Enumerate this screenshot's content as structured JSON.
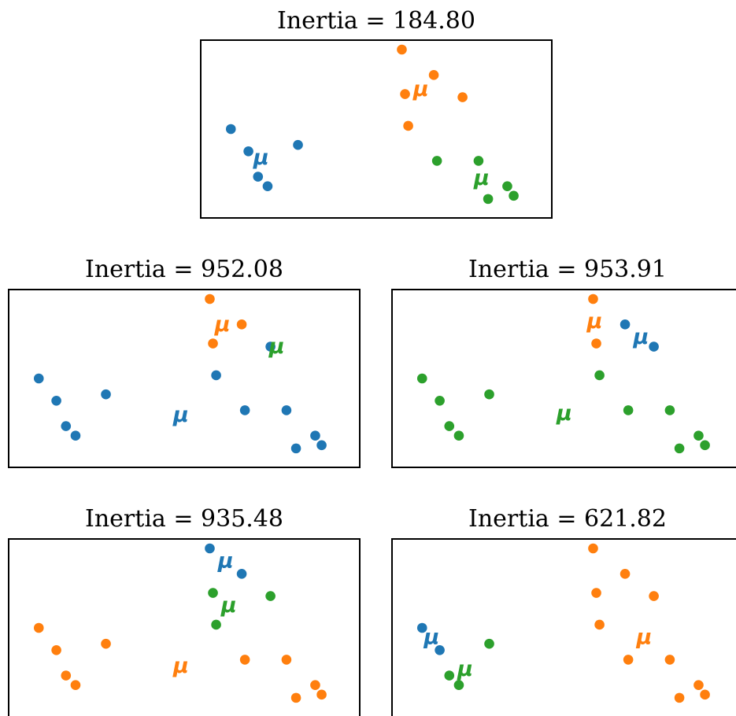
{
  "colors": {
    "c0": "#1f77b4",
    "c1": "#ff7f0e",
    "c2": "#2ca02c",
    "frame": "#000000"
  },
  "centroid_marker": "μ",
  "chart_data": [
    {
      "type": "scatter",
      "title": "Inertia = 184.80",
      "xlim": [
        0,
        10
      ],
      "ylim": [
        0,
        5
      ],
      "points": {
        "x": [
          0.45,
          1.0,
          1.3,
          1.6,
          2.55,
          5.8,
          5.9,
          6.0,
          6.8,
          7.7,
          6.9,
          8.2,
          8.5,
          9.1,
          9.3
        ],
        "y": [
          2.5,
          1.8,
          1.0,
          0.7,
          2.0,
          5.0,
          3.6,
          2.6,
          4.2,
          3.5,
          1.5,
          1.5,
          0.3,
          0.7,
          0.4
        ],
        "cluster": [
          0,
          0,
          0,
          0,
          0,
          1,
          1,
          1,
          1,
          1,
          2,
          2,
          2,
          2,
          2
        ]
      },
      "centroids": [
        {
          "cluster": 0,
          "x": 1.4,
          "y": 1.6
        },
        {
          "cluster": 1,
          "x": 6.4,
          "y": 3.75
        },
        {
          "cluster": 2,
          "x": 8.3,
          "y": 0.95
        }
      ]
    },
    {
      "type": "scatter",
      "title": "Inertia = 952.08",
      "xlim": [
        0,
        10
      ],
      "ylim": [
        0,
        5
      ],
      "points": {
        "x": [
          0.45,
          1.0,
          1.3,
          1.6,
          2.55,
          5.8,
          5.9,
          6.0,
          6.8,
          7.7,
          6.9,
          8.2,
          8.5,
          9.1,
          9.3
        ],
        "y": [
          2.5,
          1.8,
          1.0,
          0.7,
          2.0,
          5.0,
          3.6,
          2.6,
          4.2,
          3.5,
          1.5,
          1.5,
          0.3,
          0.7,
          0.4
        ],
        "cluster": [
          0,
          0,
          0,
          0,
          0,
          1,
          1,
          0,
          1,
          0,
          0,
          0,
          0,
          0,
          0
        ]
      },
      "centroids": [
        {
          "cluster": 0,
          "x": 4.9,
          "y": 1.35
        },
        {
          "cluster": 1,
          "x": 6.2,
          "y": 4.2
        },
        {
          "cluster": 2,
          "x": 7.9,
          "y": 3.5
        }
      ]
    },
    {
      "type": "scatter",
      "title": "Inertia = 953.91",
      "xlim": [
        0,
        10
      ],
      "ylim": [
        0,
        5
      ],
      "points": {
        "x": [
          0.45,
          1.0,
          1.3,
          1.6,
          2.55,
          5.8,
          5.9,
          6.0,
          6.8,
          7.7,
          6.9,
          8.2,
          8.5,
          9.1,
          9.3
        ],
        "y": [
          2.5,
          1.8,
          1.0,
          0.7,
          2.0,
          5.0,
          3.6,
          2.6,
          4.2,
          3.5,
          1.5,
          1.5,
          0.3,
          0.7,
          0.4
        ],
        "cluster": [
          2,
          2,
          2,
          2,
          2,
          1,
          1,
          2,
          0,
          0,
          2,
          2,
          2,
          2,
          2
        ]
      },
      "centroids": [
        {
          "cluster": 0,
          "x": 7.3,
          "y": 3.8
        },
        {
          "cluster": 1,
          "x": 5.85,
          "y": 4.3
        },
        {
          "cluster": 2,
          "x": 4.9,
          "y": 1.4
        }
      ]
    },
    {
      "type": "scatter",
      "title": "Inertia = 935.48",
      "xlim": [
        0,
        10
      ],
      "ylim": [
        0,
        5
      ],
      "points": {
        "x": [
          0.45,
          1.0,
          1.3,
          1.6,
          2.55,
          5.8,
          5.9,
          6.0,
          6.8,
          7.7,
          6.9,
          8.2,
          8.5,
          9.1,
          9.3
        ],
        "y": [
          2.5,
          1.8,
          1.0,
          0.7,
          2.0,
          5.0,
          3.6,
          2.6,
          4.2,
          3.5,
          1.5,
          1.5,
          0.3,
          0.7,
          0.4
        ],
        "cluster": [
          1,
          1,
          1,
          1,
          1,
          0,
          2,
          2,
          0,
          2,
          1,
          1,
          1,
          1,
          1
        ]
      },
      "centroids": [
        {
          "cluster": 0,
          "x": 6.3,
          "y": 4.6
        },
        {
          "cluster": 1,
          "x": 4.9,
          "y": 1.3
        },
        {
          "cluster": 2,
          "x": 6.4,
          "y": 3.2
        }
      ]
    },
    {
      "type": "scatter",
      "title": "Inertia = 621.82",
      "xlim": [
        0,
        10
      ],
      "ylim": [
        0,
        5
      ],
      "points": {
        "x": [
          0.45,
          1.0,
          1.3,
          1.6,
          2.55,
          5.8,
          5.9,
          6.0,
          6.8,
          7.7,
          6.9,
          8.2,
          8.5,
          9.1,
          9.3
        ],
        "y": [
          2.5,
          1.8,
          1.0,
          0.7,
          2.0,
          5.0,
          3.6,
          2.6,
          4.2,
          3.5,
          1.5,
          1.5,
          0.3,
          0.7,
          0.4
        ],
        "cluster": [
          0,
          0,
          2,
          2,
          2,
          1,
          1,
          1,
          1,
          1,
          1,
          1,
          1,
          1,
          1
        ]
      },
      "centroids": [
        {
          "cluster": 0,
          "x": 0.75,
          "y": 2.2
        },
        {
          "cluster": 1,
          "x": 7.4,
          "y": 2.2
        },
        {
          "cluster": 2,
          "x": 1.8,
          "y": 1.2
        }
      ]
    }
  ]
}
